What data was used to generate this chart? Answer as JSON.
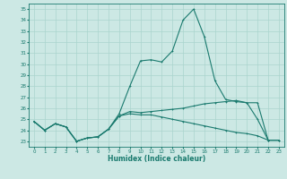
{
  "title": "",
  "xlabel": "Humidex (Indice chaleur)",
  "ylabel": "",
  "bg_color": "#cce8e4",
  "line_color": "#1a7a6e",
  "grid_color": "#aad4ce",
  "xlim": [
    -0.5,
    23.5
  ],
  "ylim": [
    22.5,
    35.5
  ],
  "yticks": [
    23,
    24,
    25,
    26,
    27,
    28,
    29,
    30,
    31,
    32,
    33,
    34,
    35
  ],
  "xticks": [
    0,
    1,
    2,
    3,
    4,
    5,
    6,
    7,
    8,
    9,
    10,
    11,
    12,
    13,
    14,
    15,
    16,
    17,
    18,
    19,
    20,
    21,
    22,
    23
  ],
  "line1": [
    24.8,
    24.0,
    24.6,
    24.3,
    23.0,
    23.3,
    23.4,
    24.1,
    25.5,
    28.0,
    30.3,
    30.4,
    30.2,
    31.2,
    34.0,
    35.0,
    32.5,
    28.5,
    26.8,
    26.6,
    26.5,
    25.0,
    23.1,
    23.1
  ],
  "line2": [
    24.8,
    24.0,
    24.6,
    24.3,
    23.0,
    23.3,
    23.4,
    24.1,
    25.3,
    25.7,
    25.6,
    25.7,
    25.8,
    25.9,
    26.0,
    26.2,
    26.4,
    26.5,
    26.6,
    26.7,
    26.5,
    26.5,
    23.1,
    23.1
  ],
  "line3": [
    24.8,
    24.0,
    24.6,
    24.3,
    23.0,
    23.3,
    23.4,
    24.1,
    25.3,
    25.5,
    25.4,
    25.4,
    25.2,
    25.0,
    24.8,
    24.6,
    24.4,
    24.2,
    24.0,
    23.8,
    23.7,
    23.5,
    23.1,
    23.1
  ]
}
